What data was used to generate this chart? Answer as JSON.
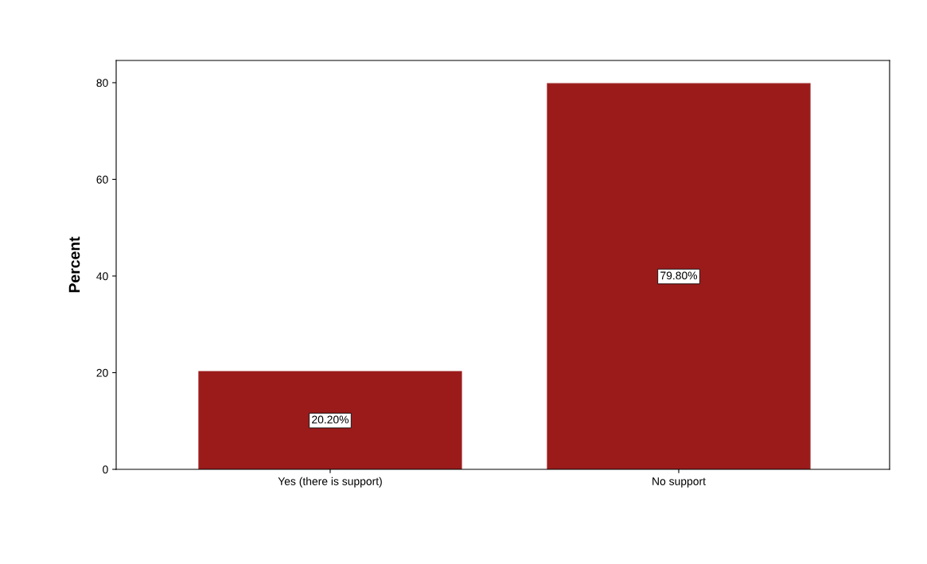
{
  "chart_data": {
    "type": "bar",
    "ylabel": "Percent",
    "categories": [
      "Yes (there is support)",
      "No support"
    ],
    "values": [
      20.2,
      79.8
    ],
    "value_labels": [
      "20.20%",
      "79.80%"
    ],
    "color": "#9b1b1b",
    "ylim": [
      0,
      84.6
    ],
    "yticks": [
      0,
      20,
      40,
      60,
      80
    ],
    "grid": false,
    "legend": false
  }
}
